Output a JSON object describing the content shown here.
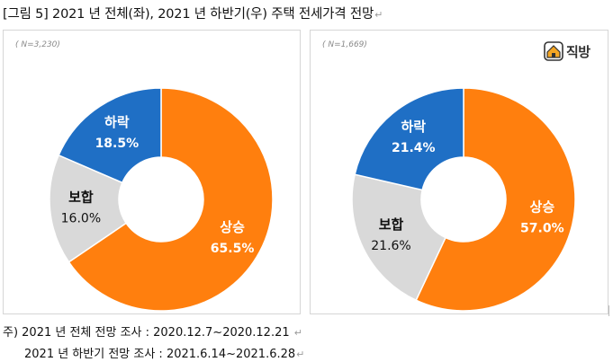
{
  "title": "[그림 5] 2021 년 전체(좌), 2021 년 하반기(우) 주택 전세가격 전망",
  "paragraph_mark": "↵",
  "logo_text": "직방",
  "colors": {
    "up": "#FF7F0E",
    "down": "#1F6FC5",
    "flat": "#D9D9D9"
  },
  "footnotes": [
    "주) 2021 년 전체 전망 조사 : 2020.12.7~2020.12.21",
    "2021 년 하반기 전망 조사 : 2021.6.14~2021.6.28"
  ],
  "chart_data": [
    {
      "type": "pie",
      "donut": true,
      "n_label": "( N=3,230)",
      "slices": [
        {
          "label": "상승",
          "value": 65.5,
          "display": "65.5%",
          "color": "#FF7F0E"
        },
        {
          "label": "보합",
          "value": 16.0,
          "display": "16.0%",
          "color": "#D9D9D9"
        },
        {
          "label": "하락",
          "value": 18.5,
          "display": "18.5%",
          "color": "#1F6FC5"
        }
      ]
    },
    {
      "type": "pie",
      "donut": true,
      "n_label": "( N=1,669)",
      "slices": [
        {
          "label": "상승",
          "value": 57.0,
          "display": "57.0%",
          "color": "#FF7F0E"
        },
        {
          "label": "보합",
          "value": 21.6,
          "display": "21.6%",
          "color": "#D9D9D9"
        },
        {
          "label": "하락",
          "value": 21.4,
          "display": "21.4%",
          "color": "#1F6FC5"
        }
      ]
    }
  ]
}
